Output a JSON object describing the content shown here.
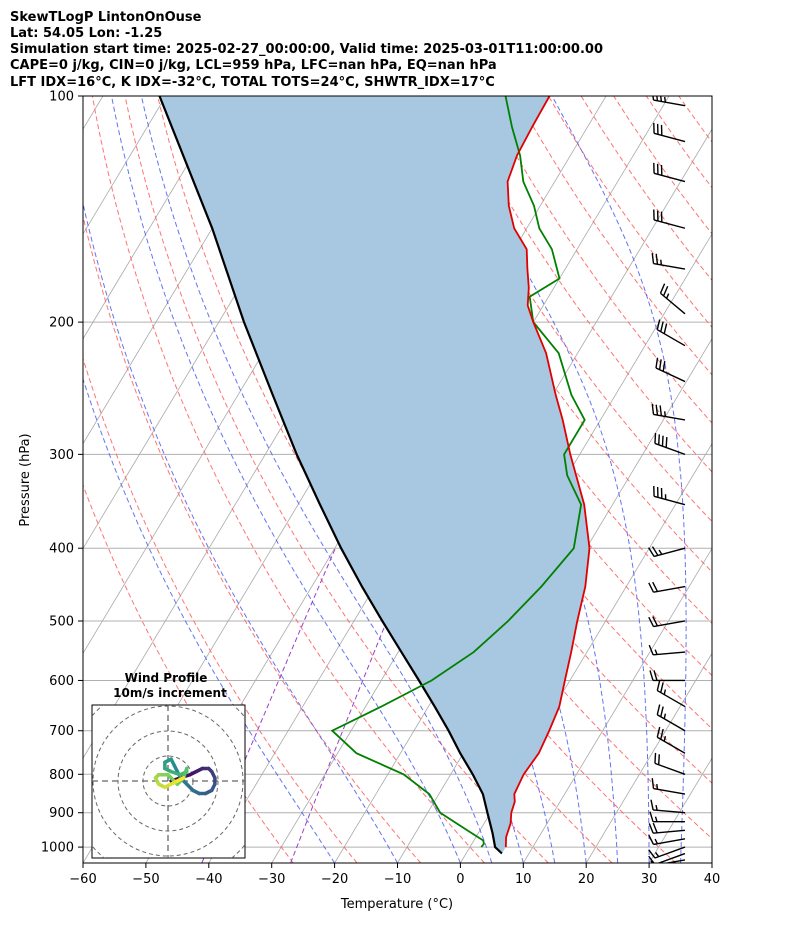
{
  "header": {
    "line1": "SkewTLogP LintonOnOuse",
    "line2": "Lat: 54.05   Lon: -1.25",
    "line3": "Simulation start time: 2025-02-27_00:00:00, Valid time: 2025-03-01T11:00:00.00",
    "line4": "CAPE=0 j/kg, CIN=0 j/kg, LCL=959 hPa, LFC=nan hPa, EQ=nan hPa",
    "line5": "LFT IDX=16°C, K IDX=-32°C, TOTAL TOTS=24°C, SHWTR_IDX=17°C"
  },
  "chart_data": {
    "type": "skewt",
    "xlabel": "Temperature (°C)",
    "ylabel": "Pressure (hPa)",
    "xlim": [
      -60,
      40
    ],
    "ylim_hpa": [
      1050,
      100
    ],
    "x_ticks": [
      -60,
      -50,
      -40,
      -30,
      -20,
      -10,
      0,
      10,
      20,
      30,
      40
    ],
    "y_ticks": [
      1000,
      900,
      800,
      700,
      600,
      500,
      400,
      300,
      200,
      100
    ],
    "grid": true,
    "colors": {
      "temperature": "#e00000",
      "dewpoint": "#008000",
      "parcel": "#000000",
      "cape_fill": "#a7c8e0",
      "dry_adiabat": "#ff6464",
      "moist_adiabat": "#4a5cf0",
      "mixing_ratio": "#9b3fc8",
      "isotherm": "#aaaaaa"
    },
    "temperature": {
      "pressure": [
        1000,
        970,
        930,
        900,
        870,
        850,
        800,
        750,
        700,
        650,
        600,
        550,
        500,
        450,
        400,
        350,
        300,
        270,
        250,
        220,
        200,
        190,
        180,
        170,
        160,
        150,
        140,
        130,
        120,
        110,
        100
      ],
      "value": [
        5.7,
        4.8,
        4.2,
        3.3,
        2.8,
        2.0,
        1.6,
        2.0,
        1.5,
        0.8,
        -0.8,
        -2.5,
        -4.5,
        -6.5,
        -9.5,
        -14.5,
        -21.5,
        -26.0,
        -29.5,
        -35.0,
        -40.0,
        -42.5,
        -44.0,
        -46.0,
        -48.0,
        -52.0,
        -55.0,
        -57.5,
        -58.5,
        -58.8,
        -59.0
      ]
    },
    "dewpoint": {
      "pressure": [
        1000,
        990,
        980,
        950,
        900,
        850,
        800,
        750,
        700,
        650,
        600,
        550,
        500,
        450,
        400,
        350,
        320,
        300,
        270,
        250,
        220,
        200,
        185,
        175,
        160,
        150,
        140,
        130,
        120,
        110,
        100
      ],
      "value": [
        1.8,
        1.9,
        1.5,
        -2.0,
        -8.0,
        -11.5,
        -17.5,
        -27.0,
        -33.0,
        -27.5,
        -22.0,
        -18.0,
        -15.5,
        -13.5,
        -12.0,
        -15.0,
        -20.0,
        -22.5,
        -22.5,
        -27.0,
        -33.0,
        -40.0,
        -43.0,
        -40.0,
        -44.0,
        -48.0,
        -51.0,
        -55.0,
        -58.0,
        -62.0,
        -66.0
      ]
    },
    "parcel": {
      "pressure": [
        1020,
        1000,
        959,
        900,
        850,
        800,
        750,
        700,
        650,
        600,
        550,
        500,
        450,
        400,
        350,
        300,
        250,
        200,
        150,
        100
      ],
      "value": [
        5.7,
        4.0,
        2.3,
        -0.5,
        -3.0,
        -6.5,
        -10.5,
        -14.5,
        -19.0,
        -24.0,
        -29.5,
        -35.5,
        -42.0,
        -49.0,
        -56.5,
        -65.0,
        -74.5,
        -86.0,
        -100.0,
        -121.0
      ]
    },
    "wind_barbs": [
      {
        "pressure": 1040,
        "direction_deg": 260,
        "speed_kt": 8
      },
      {
        "pressure": 1020,
        "direction_deg": 250,
        "speed_kt": 12
      },
      {
        "pressure": 1000,
        "direction_deg": 250,
        "speed_kt": 15
      },
      {
        "pressure": 975,
        "direction_deg": 260,
        "speed_kt": 18
      },
      {
        "pressure": 950,
        "direction_deg": 265,
        "speed_kt": 20
      },
      {
        "pressure": 925,
        "direction_deg": 270,
        "speed_kt": 18
      },
      {
        "pressure": 900,
        "direction_deg": 275,
        "speed_kt": 15
      },
      {
        "pressure": 850,
        "direction_deg": 280,
        "speed_kt": 18
      },
      {
        "pressure": 800,
        "direction_deg": 290,
        "speed_kt": 20
      },
      {
        "pressure": 750,
        "direction_deg": 300,
        "speed_kt": 25
      },
      {
        "pressure": 700,
        "direction_deg": 300,
        "speed_kt": 25
      },
      {
        "pressure": 650,
        "direction_deg": 300,
        "speed_kt": 25
      },
      {
        "pressure": 600,
        "direction_deg": 270,
        "speed_kt": 20
      },
      {
        "pressure": 550,
        "direction_deg": 265,
        "speed_kt": 15
      },
      {
        "pressure": 500,
        "direction_deg": 260,
        "speed_kt": 20
      },
      {
        "pressure": 450,
        "direction_deg": 260,
        "speed_kt": 20
      },
      {
        "pressure": 400,
        "direction_deg": 255,
        "speed_kt": 25
      },
      {
        "pressure": 350,
        "direction_deg": 285,
        "speed_kt": 35
      },
      {
        "pressure": 300,
        "direction_deg": 290,
        "speed_kt": 40
      },
      {
        "pressure": 270,
        "direction_deg": 280,
        "speed_kt": 35
      },
      {
        "pressure": 240,
        "direction_deg": 295,
        "speed_kt": 30
      },
      {
        "pressure": 215,
        "direction_deg": 300,
        "speed_kt": 30
      },
      {
        "pressure": 195,
        "direction_deg": 310,
        "speed_kt": 25
      },
      {
        "pressure": 170,
        "direction_deg": 280,
        "speed_kt": 25
      },
      {
        "pressure": 150,
        "direction_deg": 285,
        "speed_kt": 30
      },
      {
        "pressure": 130,
        "direction_deg": 285,
        "speed_kt": 30
      },
      {
        "pressure": 115,
        "direction_deg": 285,
        "speed_kt": 30
      },
      {
        "pressure": 103,
        "direction_deg": 280,
        "speed_kt": 35
      }
    ],
    "hodograph": {
      "title": "Wind Profile",
      "subtitle": "10m/s increment",
      "ring_increment_ms": 10,
      "u": [
        0.5,
        2.0,
        3.5,
        4.5,
        5.5,
        6.5,
        7.0,
        7.5,
        7.5,
        7.0,
        6.0,
        5.0,
        4.0,
        3.0,
        2.0,
        1.5,
        1.0,
        0.5,
        -0.5,
        -0.5,
        0.5,
        2.0,
        3.0,
        3.0,
        2.5,
        1.5,
        0.0,
        -1.5,
        -2.0,
        -1.5,
        -0.5,
        0.5,
        1.5,
        2.5
      ],
      "v": [
        0.0,
        0.5,
        1.0,
        1.5,
        2.0,
        2.0,
        1.5,
        0.5,
        -0.5,
        -1.5,
        -2.0,
        -2.0,
        -1.5,
        -0.5,
        0.5,
        1.5,
        2.5,
        3.5,
        3.0,
        2.0,
        1.5,
        1.0,
        1.5,
        2.0,
        0.5,
        -0.5,
        1.0,
        1.0,
        0.5,
        -0.5,
        -1.0,
        -0.5,
        0.0,
        0.5
      ]
    }
  }
}
